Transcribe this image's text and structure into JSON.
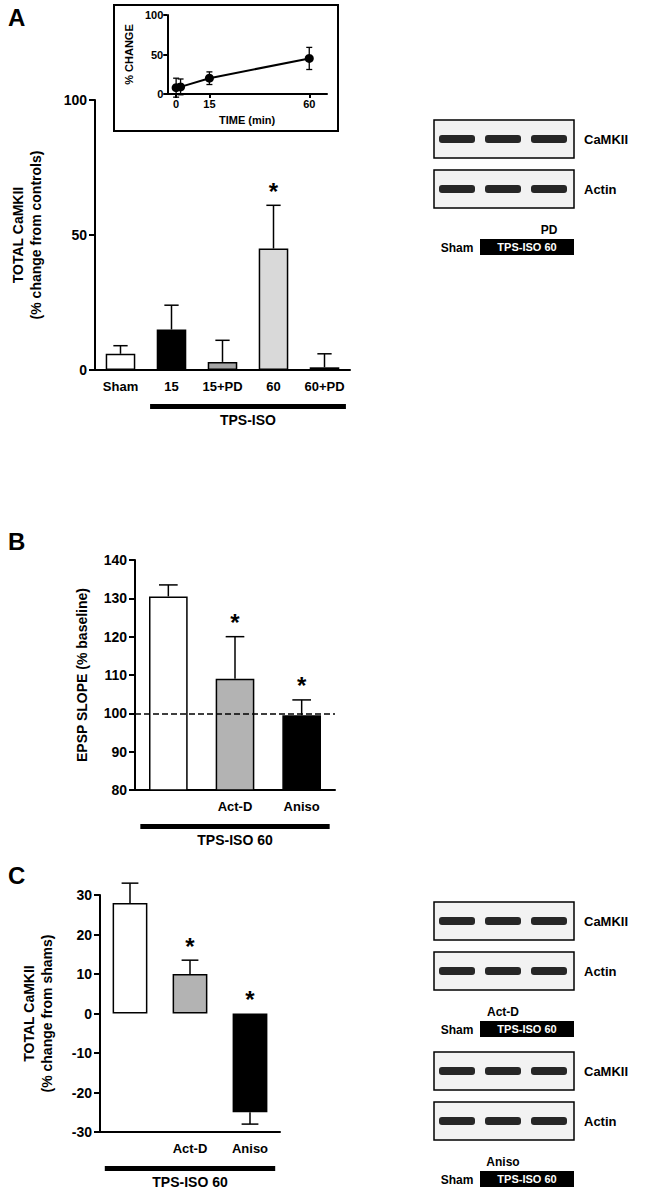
{
  "chart_data": [
    {
      "title": "A",
      "type": "bar",
      "categories": [
        "Sham",
        "15",
        "15+PD",
        "60",
        "60+PD"
      ],
      "values": [
        6,
        15,
        3,
        45,
        1
      ],
      "errors": [
        3,
        9,
        8,
        16,
        5
      ],
      "colors": [
        "#ffffff",
        "#000000",
        "#a6a6a6",
        "#d9d9d9",
        "#ffffff"
      ],
      "ylabel": "TOTAL CaMKII\n(% change from controls)",
      "ylim": [
        0,
        100
      ],
      "yticks": [
        0,
        50,
        100
      ],
      "grid": false,
      "annotations": [
        {
          "index": 3,
          "text": "*"
        }
      ],
      "bracket": {
        "from": 1,
        "to": 4,
        "text": "TPS-ISO"
      }
    },
    {
      "type": "line",
      "x": [
        0,
        2,
        15,
        60
      ],
      "values": [
        8,
        9,
        20,
        45
      ],
      "errors": [
        12,
        10,
        8,
        14
      ],
      "color": "#000000",
      "marker": "circle",
      "xlabel": "TIME (min)",
      "ylabel": "% CHANGE",
      "xlim": [
        -4,
        68
      ],
      "xticks": [
        0,
        15,
        60
      ],
      "ylim": [
        0,
        100
      ],
      "yticks": [
        0,
        50,
        100
      ],
      "grid": false
    },
    {
      "title": "B",
      "type": "bar",
      "categories": [
        null,
        "Act-D",
        "Aniso"
      ],
      "values": [
        130.5,
        109,
        99.5
      ],
      "errors": [
        3,
        11,
        4
      ],
      "colors": [
        "#ffffff",
        "#b3b3b3",
        "#000000"
      ],
      "baseline": 100,
      "ylabel": "EPSP SLOPE (% baseline)",
      "ylim": [
        80,
        140
      ],
      "yticks": [
        80,
        90,
        100,
        110,
        120,
        130,
        140
      ],
      "grid": false,
      "annotations": [
        {
          "index": 1,
          "text": "*"
        },
        {
          "index": 2,
          "text": "*"
        }
      ],
      "bracket": {
        "from": 0,
        "to": 2,
        "text": "TPS-ISO 60"
      }
    },
    {
      "title": "C",
      "type": "bar",
      "categories": [
        null,
        "Act-D",
        "Aniso"
      ],
      "values": [
        28,
        10,
        -25
      ],
      "errors": [
        5,
        3.5,
        3
      ],
      "colors": [
        "#ffffff",
        "#b3b3b3",
        "#000000"
      ],
      "ylabel": "TOTAL CaMKII\n(% change from shams)",
      "ylim": [
        -30,
        30
      ],
      "yticks": [
        -30,
        -20,
        -10,
        0,
        10,
        20,
        30
      ],
      "grid": false,
      "annotations": [
        {
          "index": 1,
          "text": "*"
        },
        {
          "index": 2,
          "text": "*"
        }
      ],
      "bracket": {
        "from": 0,
        "to": 2,
        "text": "TPS-ISO 60"
      }
    }
  ],
  "blots": [
    {
      "rows": [
        "CaMKII",
        "Actin"
      ],
      "lane_labels": [
        "Sham",
        null,
        null
      ],
      "treatment_labels": [
        null,
        null,
        "PD"
      ],
      "group_label": "TPS-ISO 60"
    },
    {
      "rows": [
        "CaMKII",
        "Actin"
      ],
      "lane_labels": [
        "Sham",
        null,
        null
      ],
      "treatment_labels": [
        null,
        "Act-D",
        null
      ],
      "group_label": "TPS-ISO 60"
    },
    {
      "rows": [
        "CaMKII",
        "Actin"
      ],
      "lane_labels": [
        "Sham",
        null,
        null
      ],
      "treatment_labels": [
        null,
        "Aniso",
        null
      ],
      "group_label": "TPS-ISO 60"
    }
  ]
}
